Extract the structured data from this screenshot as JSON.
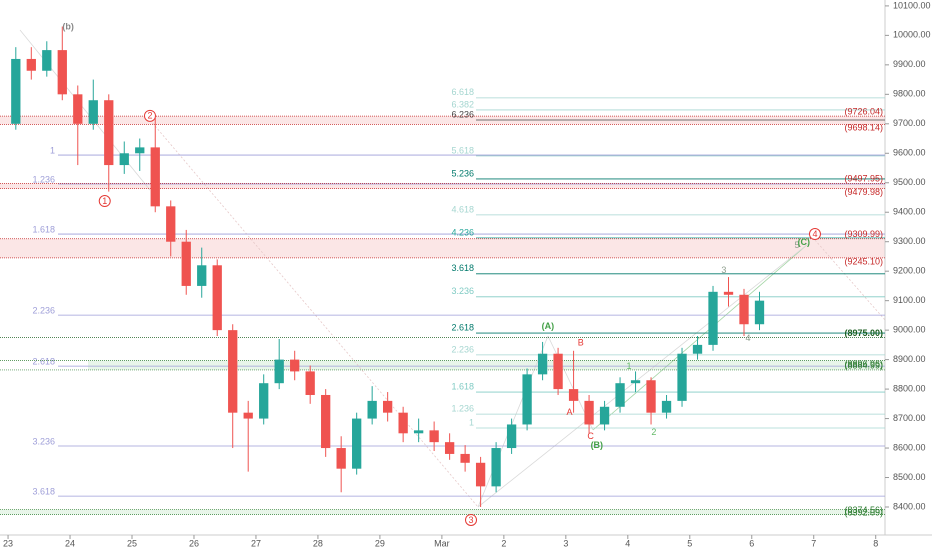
{
  "chart_data": {
    "type": "candlestick",
    "up_color": "#26a69a",
    "down_color": "#ef5350",
    "xlim": [
      -0.13,
      14.15
    ],
    "ylim": [
      8305,
      10120
    ],
    "xticks": [
      {
        "value": 0,
        "label": "23"
      },
      {
        "value": 1,
        "label": "24"
      },
      {
        "value": 2,
        "label": "25"
      },
      {
        "value": 3,
        "label": "26"
      },
      {
        "value": 4,
        "label": "27"
      },
      {
        "value": 5,
        "label": "28"
      },
      {
        "value": 6,
        "label": "29"
      },
      {
        "value": 7,
        "label": "Mar"
      },
      {
        "value": 8,
        "label": "2"
      },
      {
        "value": 9,
        "label": "3"
      },
      {
        "value": 10,
        "label": "4"
      },
      {
        "value": 11,
        "label": "5"
      },
      {
        "value": 12,
        "label": "6"
      },
      {
        "value": 13,
        "label": "7"
      },
      {
        "value": 14,
        "label": "8"
      }
    ],
    "yticks": [
      {
        "value": 10100,
        "label": "10100.00"
      },
      {
        "value": 10000,
        "label": "10000.00"
      },
      {
        "value": 9900,
        "label": "9900.00"
      },
      {
        "value": 9800,
        "label": "9800.00"
      },
      {
        "value": 9700,
        "label": "9700.00"
      },
      {
        "value": 9600,
        "label": "9600.00"
      },
      {
        "value": 9500,
        "label": "9500.00"
      },
      {
        "value": 9400,
        "label": "9400.00"
      },
      {
        "value": 9300,
        "label": "9300.00"
      },
      {
        "value": 9200,
        "label": "9200.00"
      },
      {
        "value": 9100,
        "label": "9100.00"
      },
      {
        "value": 9000,
        "label": "9000.00"
      },
      {
        "value": 8900,
        "label": "8900.00"
      },
      {
        "value": 8800,
        "label": "8800.00"
      },
      {
        "value": 8700,
        "label": "8700.00"
      },
      {
        "value": 8600,
        "label": "8600.00"
      },
      {
        "value": 8500,
        "label": "8500.00"
      },
      {
        "value": 8400,
        "label": "8400.00"
      }
    ],
    "x": [
      0.125,
      0.375,
      0.625,
      0.875,
      1.125,
      1.375,
      1.625,
      1.875,
      2.125,
      2.375,
      2.625,
      2.875,
      3.125,
      3.375,
      3.625,
      3.875,
      4.125,
      4.375,
      4.625,
      4.875,
      5.125,
      5.375,
      5.625,
      5.875,
      6.125,
      6.375,
      6.625,
      6.875,
      7.125,
      7.375,
      7.625,
      7.875,
      8.125,
      8.375,
      8.625,
      8.875,
      9.125,
      9.375,
      9.625,
      9.875,
      10.125,
      10.375,
      10.625,
      10.875,
      11.125,
      11.375,
      11.625,
      11.875,
      12.125
    ],
    "open": [
      9700,
      9920,
      9880,
      9950,
      9800,
      9700,
      9780,
      9560,
      9600,
      9620,
      9420,
      9300,
      9150,
      9220,
      9000,
      8720,
      8700,
      8820,
      8900,
      8860,
      8780,
      8600,
      8530,
      8700,
      8760,
      8720,
      8650,
      8660,
      8620,
      8580,
      8550,
      8470,
      8600,
      8680,
      8850,
      8920,
      8800,
      8760,
      8680,
      8740,
      8820,
      8830,
      8720,
      8760,
      8920,
      8950,
      9130,
      9120,
      9020
    ],
    "high": [
      9960,
      9960,
      9980,
      10030,
      9830,
      9850,
      9800,
      9640,
      9650,
      9720,
      9440,
      9340,
      9280,
      9240,
      9020,
      8760,
      8850,
      8970,
      8930,
      8880,
      8800,
      8640,
      8720,
      8810,
      8790,
      8740,
      8700,
      8690,
      8650,
      8610,
      8570,
      8620,
      8700,
      8870,
      8960,
      8940,
      8930,
      8780,
      8760,
      8840,
      8860,
      8840,
      8780,
      8940,
      8980,
      9150,
      9180,
      9140,
      9130
    ],
    "low": [
      9680,
      9850,
      9860,
      9780,
      9560,
      9680,
      9470,
      9530,
      9540,
      9400,
      9250,
      9120,
      9110,
      8980,
      8600,
      8520,
      8680,
      8800,
      8830,
      8750,
      8570,
      8450,
      8510,
      8680,
      8690,
      8620,
      8620,
      8590,
      8560,
      8520,
      8400,
      8450,
      8580,
      8660,
      8830,
      8780,
      8720,
      8650,
      8660,
      8720,
      8790,
      8680,
      8700,
      8740,
      8900,
      8930,
      9080,
      8980,
      9000
    ],
    "close": [
      9920,
      9880,
      9950,
      9800,
      9700,
      9780,
      9560,
      9600,
      9620,
      9420,
      9300,
      9150,
      9220,
      9000,
      8720,
      8700,
      8820,
      8900,
      8860,
      8780,
      8600,
      8530,
      8700,
      8760,
      8720,
      8650,
      8660,
      8620,
      8580,
      8550,
      8470,
      8600,
      8680,
      8850,
      8920,
      8800,
      8760,
      8680,
      8740,
      8820,
      8830,
      8720,
      8760,
      8920,
      8950,
      9130,
      9120,
      9020,
      9100
    ],
    "fib_left": [
      {
        "label": "1",
        "price": 9594
      },
      {
        "label": "1.236",
        "price": 9496
      },
      {
        "label": "1.618",
        "price": 9326
      },
      {
        "label": "2.236",
        "price": 9051
      },
      {
        "label": "2.618",
        "price": 8878
      },
      {
        "label": "3.236",
        "price": 8607
      },
      {
        "label": "3.618",
        "price": 8437
      }
    ],
    "fib_left_color": "#9e9ed8",
    "fib_right": [
      {
        "label": "6.618",
        "price": 9788,
        "color": "#a5d6d0"
      },
      {
        "label": "6.382",
        "price": 9747,
        "color": "#a5d6d0"
      },
      {
        "label": "6.236",
        "price": 9713,
        "color": "#444444"
      },
      {
        "label": "5.618",
        "price": 9591,
        "color": "#a5d6d0"
      },
      {
        "label": "5.236",
        "price": 9513,
        "color": "#00796b"
      },
      {
        "label": "4.618",
        "price": 9391,
        "color": "#a5d6d0"
      },
      {
        "label": "4.236",
        "price": 9313,
        "color": "#26a69a"
      },
      {
        "label": "3.618",
        "price": 9191,
        "color": "#00796b"
      },
      {
        "label": "3.236",
        "price": 9113,
        "color": "#80cbc4"
      },
      {
        "label": "2.618",
        "price": 8990,
        "color": "#00796b"
      },
      {
        "label": "2.236",
        "price": 8916,
        "color": "#a5d6d0"
      },
      {
        "label": "1.618",
        "price": 8790,
        "color": "#80cbc4"
      },
      {
        "label": "1.236",
        "price": 8715,
        "color": "#a5d6d0"
      },
      {
        "label": "1",
        "price": 8668,
        "color": "#a5d6d0"
      }
    ],
    "price_tags": [
      {
        "label": "(9726.04)",
        "value": 9726.04,
        "color": "#c62828"
      },
      {
        "label": "(9698.14)",
        "value": 9698.14,
        "color": "#c62828"
      },
      {
        "label": "(9497.95)",
        "value": 9497.95,
        "color": "#c62828"
      },
      {
        "label": "(9479.98)",
        "value": 9479.98,
        "color": "#c62828"
      },
      {
        "label": "(9309.99)",
        "value": 9309.99,
        "color": "#c62828"
      },
      {
        "label": "(9245.10)",
        "value": 9245.1,
        "color": "#c62828"
      },
      {
        "label": "(8975.00)",
        "value": 8975,
        "color": "#1b5e20"
      },
      {
        "label": "(8896.96)",
        "value": 8896.96,
        "color": "#2e7d32"
      },
      {
        "label": "(8864.99)",
        "value": 8864.99,
        "color": "#2e7d32"
      },
      {
        "label": "(8392.09)",
        "value": 8392.09,
        "color": "#2e7d32"
      },
      {
        "label": "(8374.56)",
        "value": 8374.56,
        "color": "#2e7d32"
      }
    ],
    "annotations": [
      {
        "text": "(b)",
        "x": 0.97,
        "price": 10029,
        "color": "#888888"
      },
      {
        "text": "1",
        "x": 1.56,
        "price": 9438,
        "color": "#e53935",
        "circled": true
      },
      {
        "text": "2",
        "x": 2.29,
        "price": 9727,
        "color": "#e53935",
        "circled": true
      },
      {
        "text": "3",
        "x": 7.47,
        "price": 8356,
        "color": "#e53935",
        "circled": true
      },
      {
        "text": "4",
        "x": 13.02,
        "price": 9326,
        "color": "#e53935",
        "circled": true
      },
      {
        "text": "(A)",
        "x": 8.71,
        "price": 9014,
        "color": "#43a047"
      },
      {
        "text": "B",
        "x": 9.24,
        "price": 8957,
        "color": "#e53935"
      },
      {
        "text": "A",
        "x": 9.06,
        "price": 8722,
        "color": "#e53935"
      },
      {
        "text": "C",
        "x": 9.4,
        "price": 8641,
        "color": "#e53935"
      },
      {
        "text": "(B)",
        "x": 9.5,
        "price": 8610,
        "color": "#43a047"
      },
      {
        "text": "1",
        "x": 10.02,
        "price": 8878,
        "color": "#66bb6a"
      },
      {
        "text": "2",
        "x": 10.42,
        "price": 8654,
        "color": "#66bb6a"
      },
      {
        "text": "3",
        "x": 11.55,
        "price": 9204,
        "color": "#8d9e8d"
      },
      {
        "text": "4",
        "x": 11.94,
        "price": 8973,
        "color": "#8d9e8d"
      },
      {
        "text": "5",
        "x": 12.73,
        "price": 9289,
        "color": "#8d9e8d"
      },
      {
        "text": "(C)",
        "x": 12.84,
        "price": 9299,
        "color": "#43a047"
      }
    ]
  }
}
